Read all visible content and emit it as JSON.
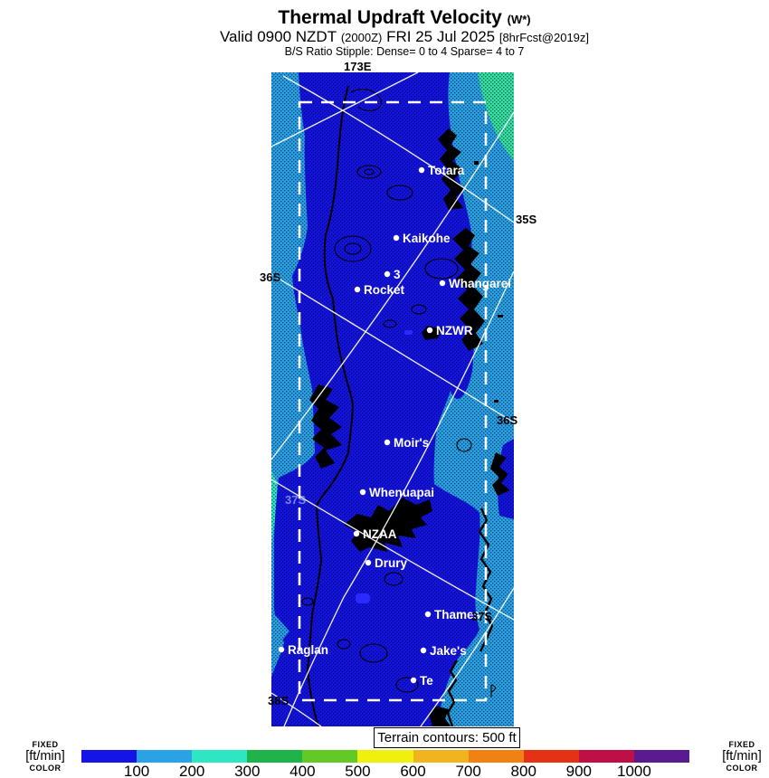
{
  "header": {
    "title": "Thermal Updraft Velocity",
    "title_suffix": "(W*)",
    "valid_prefix": "Valid 0900 NZDT",
    "valid_zulu": "(2000Z)",
    "valid_date": "FRI 25 Jul 2025",
    "valid_fcst": "[8hrFcst@2019z]",
    "stipple_line": "B/S Ratio Stipple:  Dense= 0 to 4  Sparse= 4 to 7"
  },
  "map": {
    "legend_box": "Terrain contours: 500 ft",
    "grid_labels": [
      {
        "text": "173E"
      },
      {
        "text": "35S"
      },
      {
        "text": "36S"
      },
      {
        "text": "36S"
      },
      {
        "text": "37S"
      },
      {
        "text": "37S"
      },
      {
        "text": "38S"
      }
    ],
    "sites": [
      {
        "label": "Totara"
      },
      {
        "label": "Kaikohe"
      },
      {
        "label": "3"
      },
      {
        "label": "Rocket"
      },
      {
        "label": "Whangarei"
      },
      {
        "label": "NZWR"
      },
      {
        "label": "Moir's"
      },
      {
        "label": "Whenuapai"
      },
      {
        "label": "NZAA"
      },
      {
        "label": "Drury"
      },
      {
        "label": "Thames"
      },
      {
        "label": "Raglan"
      },
      {
        "label": "Jake's"
      },
      {
        "label": "Te"
      }
    ]
  },
  "colorbar": {
    "ticks": [
      "100",
      "200",
      "300",
      "400",
      "500",
      "600",
      "700",
      "800",
      "900",
      "1000"
    ],
    "colors": [
      "#1414e6",
      "#29a3e6",
      "#2ee6c3",
      "#1fb44b",
      "#63c927",
      "#f0f00f",
      "#f0b41e",
      "#f08214",
      "#e63214",
      "#be1046",
      "#5a1b91"
    ],
    "fixed_top": "FIXED",
    "fixed_mid": "[ft/min]",
    "fixed_bottom": "COLOR"
  },
  "palette": {
    "map_light_blue": "#29a3e6",
    "map_dark_blue": "#1414e6",
    "map_teal": "#35e2a2",
    "map_turquoise": "#2ee6c3",
    "map_bright_blue": "#2a2aff",
    "grid_line_white": "#ffffff"
  }
}
